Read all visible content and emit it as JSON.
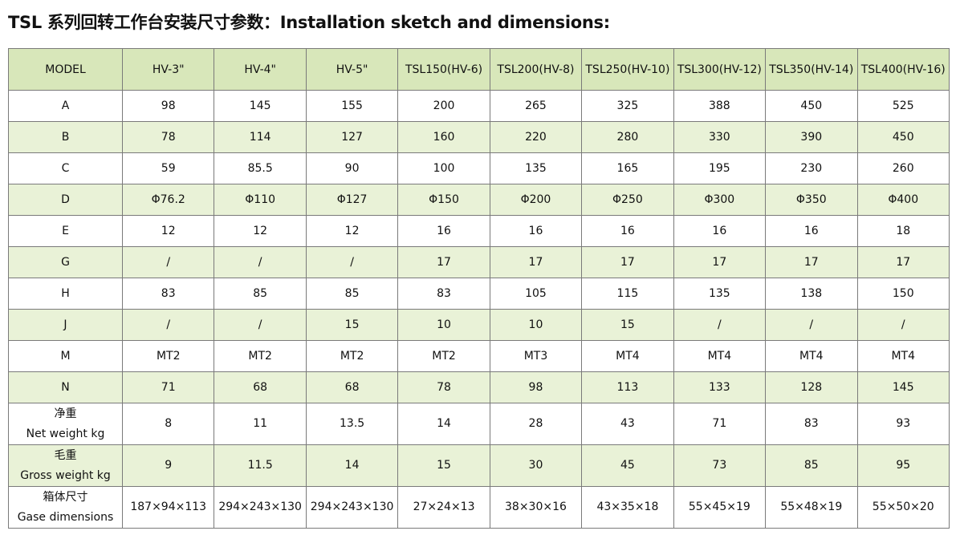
{
  "title": "TSL 系列回转工作台安装尺寸参数：Installation sketch and dimensions:",
  "table": {
    "header": [
      "MODEL",
      "HV-3\"",
      "HV-4\"",
      "HV-5\"",
      "TSL150(HV-6)",
      "TSL200(HV-8)",
      "TSL250(HV-10)",
      "TSL300(HV-12)",
      "TSL350(HV-14)",
      "TSL400(HV-16)"
    ],
    "rows": [
      {
        "label": "A",
        "values": [
          "98",
          "145",
          "155",
          "200",
          "265",
          "325",
          "388",
          "450",
          "525"
        ]
      },
      {
        "label": "B",
        "values": [
          "78",
          "114",
          "127",
          "160",
          "220",
          "280",
          "330",
          "390",
          "450"
        ]
      },
      {
        "label": "C",
        "values": [
          "59",
          "85.5",
          "90",
          "100",
          "135",
          "165",
          "195",
          "230",
          "260"
        ]
      },
      {
        "label": "D",
        "values": [
          "Φ76.2",
          "Φ110",
          "Φ127",
          "Φ150",
          "Φ200",
          "Φ250",
          "Φ300",
          "Φ350",
          "Φ400"
        ]
      },
      {
        "label": "E",
        "values": [
          "12",
          "12",
          "12",
          "16",
          "16",
          "16",
          "16",
          "16",
          "18"
        ]
      },
      {
        "label": "G",
        "values": [
          "/",
          "/",
          "/",
          "17",
          "17",
          "17",
          "17",
          "17",
          "17"
        ]
      },
      {
        "label": "H",
        "values": [
          "83",
          "85",
          "85",
          "83",
          "105",
          "115",
          "135",
          "138",
          "150"
        ]
      },
      {
        "label": "J",
        "values": [
          "/",
          "/",
          "15",
          "10",
          "10",
          "15",
          "/",
          "/",
          "/"
        ]
      },
      {
        "label": "M",
        "values": [
          "MT2",
          "MT2",
          "MT2",
          "MT2",
          "MT3",
          "MT4",
          "MT4",
          "MT4",
          "MT4"
        ]
      },
      {
        "label": "N",
        "values": [
          "71",
          "68",
          "68",
          "78",
          "98",
          "113",
          "133",
          "128",
          "145"
        ]
      }
    ],
    "tall_rows": [
      {
        "label_cn": "净重",
        "label_en": "Net weight kg",
        "values": [
          "8",
          "11",
          "13.5",
          "14",
          "28",
          "43",
          "71",
          "83",
          "93"
        ]
      },
      {
        "label_cn": "毛重",
        "label_en": "Gross weight kg",
        "values": [
          "9",
          "11.5",
          "14",
          "15",
          "30",
          "45",
          "73",
          "85",
          "95"
        ]
      },
      {
        "label_cn": "箱体尺寸",
        "label_en": "Gase dimensions",
        "values": [
          "187×94×113",
          "294×243×130",
          "294×243×130",
          "27×24×13",
          "38×30×16",
          "43×35×18",
          "55×45×19",
          "55×48×19",
          "55×50×20"
        ]
      }
    ]
  }
}
